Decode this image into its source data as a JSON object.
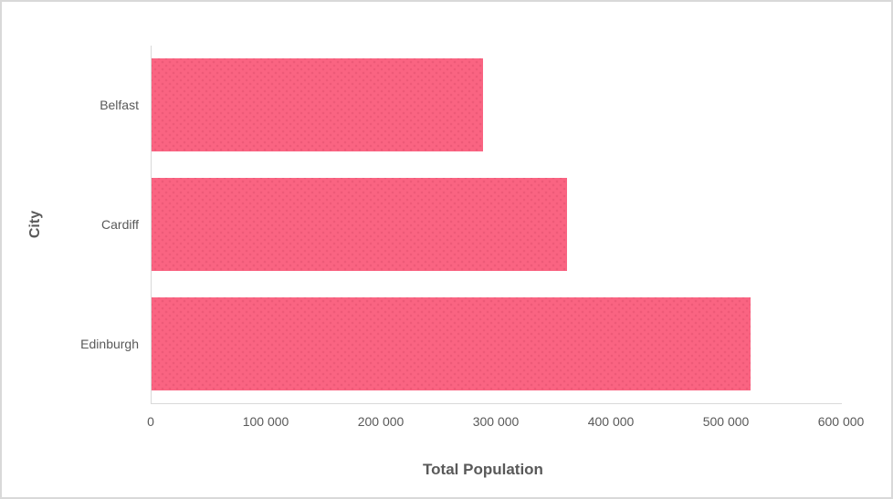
{
  "frame": {
    "background_color": "#FFFFFF",
    "border_color": "#D9D9D9"
  },
  "chart_data": {
    "type": "bar",
    "orientation": "horizontal",
    "title": "",
    "xlabel": "Total Population",
    "ylabel": "City",
    "categories": [
      "Belfast",
      "Cardiff",
      "Edinburgh"
    ],
    "values": [
      288000,
      361000,
      520000
    ],
    "xlim": [
      0,
      600000
    ],
    "x_tick_values": [
      0,
      100000,
      200000,
      300000,
      400000,
      500000,
      600000
    ],
    "x_tick_labels": [
      "0",
      "100 000",
      "200 000",
      "300 000",
      "400 000",
      "500 000",
      "600 000"
    ],
    "bar_color": "#FA6482",
    "bar_texture": "subtle darker pink dots",
    "axis_line_color": "#D9D9D9",
    "text_color": "#595959",
    "grid": false,
    "legend": false,
    "plot_background": "#FFFFFF"
  }
}
